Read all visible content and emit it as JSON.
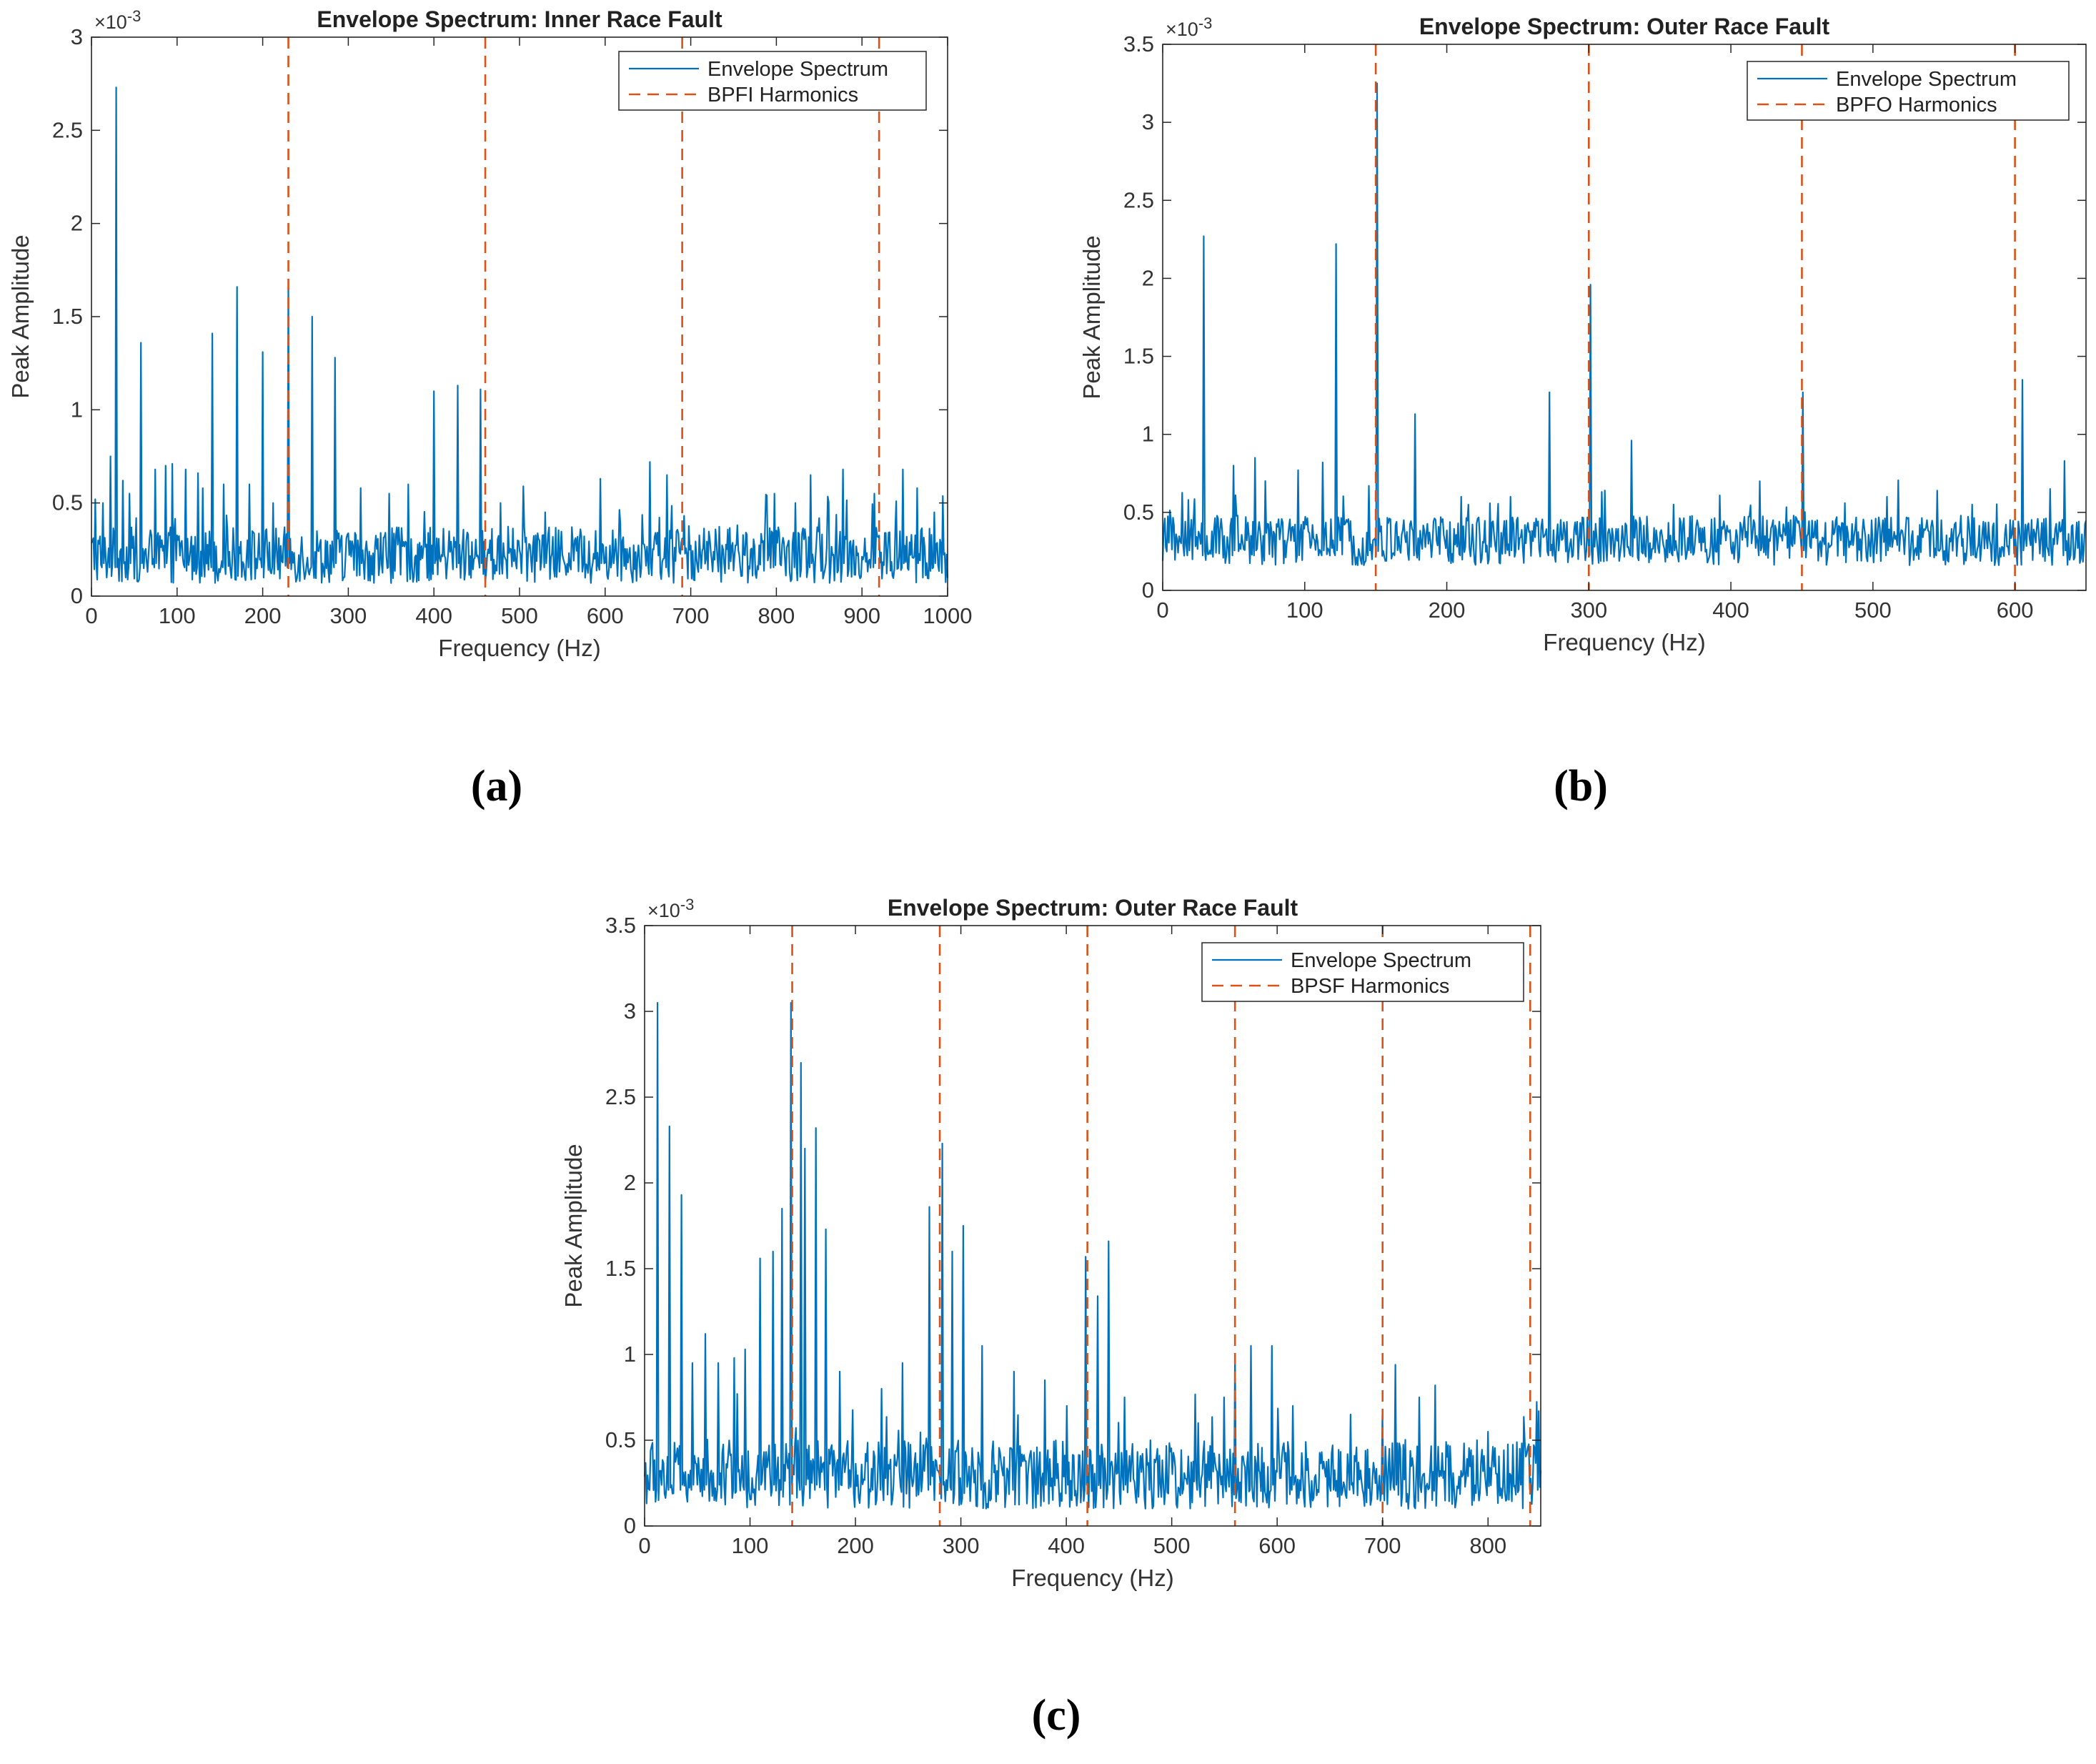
{
  "colors": {
    "spectrum": "#0072BD",
    "harmonic": "#D95319",
    "axis": "#262626"
  },
  "chart_data": [
    {
      "type": "line",
      "id": "a",
      "panel_label": "(a)",
      "title": "Envelope Spectrum: Inner Race Fault",
      "xlabel": "Frequency (Hz)",
      "ylabel": "Peak Amplitude",
      "exponent_label": "×10",
      "exponent_power": "-3",
      "xlim": [
        0,
        1000
      ],
      "ylim": [
        0,
        3
      ],
      "xticks": [
        0,
        100,
        200,
        300,
        400,
        500,
        600,
        700,
        800,
        900,
        1000
      ],
      "yticks": [
        0,
        0.5,
        1,
        1.5,
        2,
        2.5,
        3
      ],
      "ytick_labels": [
        "0",
        "0.5",
        "1",
        "1.5",
        "2",
        "2.5",
        "3"
      ],
      "harmonics": [
        230,
        460,
        690,
        920
      ],
      "legend": [
        "Envelope Spectrum",
        "BPFI Harmonics"
      ],
      "noise_level": 0.22,
      "noise_spread": 0.15,
      "peaks": [
        [
          5,
          0.52
        ],
        [
          13,
          0.5
        ],
        [
          22,
          0.75
        ],
        [
          29,
          2.73
        ],
        [
          37,
          0.62
        ],
        [
          45,
          0.55
        ],
        [
          58,
          1.36
        ],
        [
          75,
          0.68
        ],
        [
          87,
          0.7
        ],
        [
          95,
          0.71
        ],
        [
          110,
          0.68
        ],
        [
          125,
          0.66
        ],
        [
          141,
          1.41
        ],
        [
          155,
          0.6
        ],
        [
          170,
          1.66
        ],
        [
          185,
          0.6
        ],
        [
          200,
          1.31
        ],
        [
          212,
          0.5
        ],
        [
          230,
          1.66
        ],
        [
          258,
          1.5
        ],
        [
          285,
          1.28
        ],
        [
          315,
          0.58
        ],
        [
          348,
          0.55
        ],
        [
          370,
          0.6
        ],
        [
          400,
          1.1
        ],
        [
          428,
          1.13
        ],
        [
          455,
          1.11
        ],
        [
          478,
          0.5
        ],
        [
          530,
          0.45
        ],
        [
          595,
          0.63
        ],
        [
          652,
          0.72
        ],
        [
          672,
          0.65
        ],
        [
          798,
          0.55
        ],
        [
          822,
          0.5
        ],
        [
          840,
          0.65
        ],
        [
          878,
          0.68
        ],
        [
          915,
          0.55
        ],
        [
          948,
          0.68
        ],
        [
          965,
          0.58
        ],
        [
          985,
          0.45
        ]
      ]
    },
    {
      "type": "line",
      "id": "b",
      "panel_label": "(b)",
      "title": "Envelope Spectrum: Outer Race Fault",
      "xlabel": "Frequency (Hz)",
      "ylabel": "Peak Amplitude",
      "exponent_label": "×10",
      "exponent_power": "-3",
      "xlim": [
        0,
        650
      ],
      "ylim": [
        0,
        3.5
      ],
      "xticks": [
        0,
        100,
        200,
        300,
        400,
        500,
        600
      ],
      "yticks": [
        0,
        0.5,
        1,
        1.5,
        2,
        2.5,
        3,
        3.5
      ],
      "ytick_labels": [
        "0",
        "0.5",
        "1",
        "1.5",
        "2",
        "2.5",
        "3",
        "3.5"
      ],
      "harmonics": [
        150,
        300,
        450,
        600
      ],
      "legend": [
        "Envelope Spectrum",
        "BPFO Harmonics"
      ],
      "noise_level": 0.32,
      "noise_spread": 0.16,
      "peaks": [
        [
          18,
          0.58
        ],
        [
          29,
          2.27
        ],
        [
          50,
          0.8
        ],
        [
          65,
          0.85
        ],
        [
          95,
          0.77
        ],
        [
          113,
          0.82
        ],
        [
          122,
          2.22
        ],
        [
          145,
          0.67
        ],
        [
          151,
          3.25
        ],
        [
          178,
          1.13
        ],
        [
          210,
          0.6
        ],
        [
          245,
          0.6
        ],
        [
          272,
          1.27
        ],
        [
          301,
          1.96
        ],
        [
          330,
          0.96
        ],
        [
          360,
          0.55
        ],
        [
          420,
          0.7
        ],
        [
          451,
          1.27
        ],
        [
          480,
          0.56
        ],
        [
          510,
          0.6
        ],
        [
          545,
          0.64
        ],
        [
          570,
          0.55
        ],
        [
          605,
          1.35
        ],
        [
          625,
          0.65
        ],
        [
          635,
          0.83
        ]
      ]
    },
    {
      "type": "line",
      "id": "c",
      "panel_label": "(c)",
      "title": "Envelope Spectrum: Outer Race Fault",
      "xlabel": "Frequency (Hz)",
      "ylabel": "Peak Amplitude",
      "exponent_label": "×10",
      "exponent_power": "-3",
      "xlim": [
        0,
        850
      ],
      "ylim": [
        0,
        3.5
      ],
      "xticks": [
        0,
        100,
        200,
        300,
        400,
        500,
        600,
        700,
        800
      ],
      "yticks": [
        0,
        0.5,
        1,
        1.5,
        2,
        2.5,
        3,
        3.5
      ],
      "ytick_labels": [
        "0",
        "0.5",
        "1",
        "1.5",
        "2",
        "2.5",
        "3",
        "3.5"
      ],
      "harmonics": [
        140,
        280,
        420,
        560,
        700,
        840
      ],
      "legend": [
        "Envelope Spectrum",
        "BPSF Harmonics"
      ],
      "noise_level": 0.3,
      "noise_spread": 0.2,
      "peaks": [
        [
          12,
          3.05
        ],
        [
          24,
          2.33
        ],
        [
          35,
          1.93
        ],
        [
          45,
          0.95
        ],
        [
          58,
          1.12
        ],
        [
          70,
          0.95
        ],
        [
          85,
          0.98
        ],
        [
          95,
          1.03
        ],
        [
          110,
          1.56
        ],
        [
          122,
          1.6
        ],
        [
          130,
          1.85
        ],
        [
          139,
          3.05
        ],
        [
          148,
          2.7
        ],
        [
          152,
          2.2
        ],
        [
          162,
          2.32
        ],
        [
          172,
          1.73
        ],
        [
          185,
          0.9
        ],
        [
          225,
          0.8
        ],
        [
          245,
          0.95
        ],
        [
          270,
          1.86
        ],
        [
          282,
          2.23
        ],
        [
          292,
          1.6
        ],
        [
          302,
          1.75
        ],
        [
          320,
          1.05
        ],
        [
          350,
          0.9
        ],
        [
          380,
          0.85
        ],
        [
          400,
          0.7
        ],
        [
          418,
          1.57
        ],
        [
          430,
          1.34
        ],
        [
          440,
          1.66
        ],
        [
          455,
          0.75
        ],
        [
          480,
          0.5
        ],
        [
          525,
          0.6
        ],
        [
          550,
          0.75
        ],
        [
          560,
          1.0
        ],
        [
          575,
          1.05
        ],
        [
          595,
          1.05
        ],
        [
          615,
          0.7
        ],
        [
          670,
          0.65
        ],
        [
          700,
          0.65
        ],
        [
          712,
          0.94
        ],
        [
          735,
          0.75
        ],
        [
          750,
          0.82
        ],
        [
          790,
          0.5
        ],
        [
          830,
          0.45
        ],
        [
          848,
          0.67
        ]
      ]
    }
  ]
}
